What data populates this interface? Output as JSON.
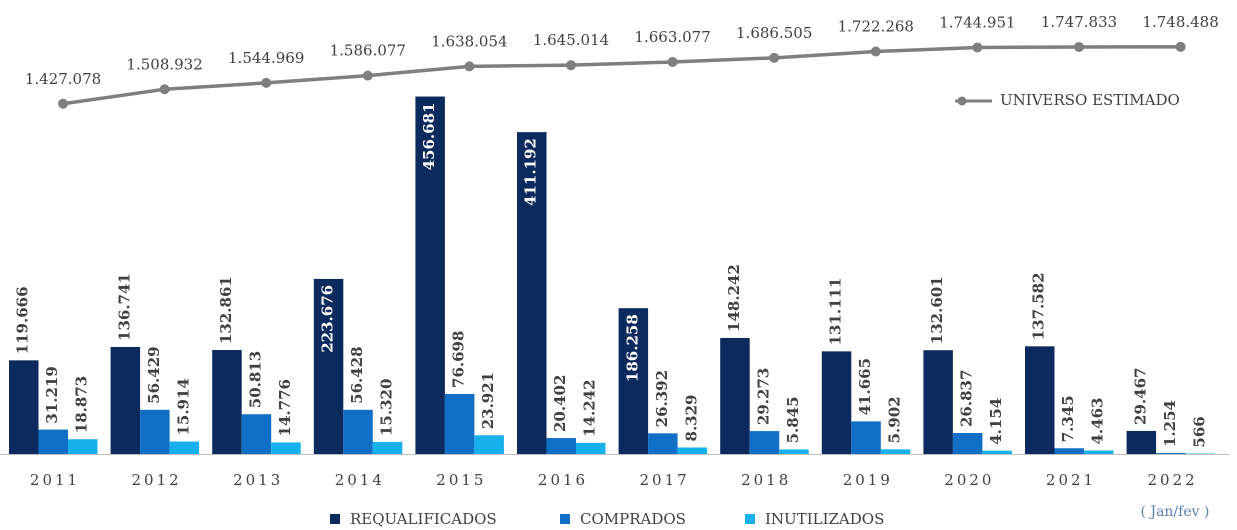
{
  "chart_data": {
    "type": "bar",
    "categories": [
      "2011",
      "2012",
      "2013",
      "2014",
      "2015",
      "2016",
      "2017",
      "2018",
      "2019",
      "2020",
      "2021",
      "2022"
    ],
    "series": [
      {
        "name": "REQUALIFICADOS",
        "color": "#0d2a5e",
        "values": [
          119666,
          136741,
          132861,
          223676,
          456681,
          411192,
          186258,
          148242,
          131111,
          132601,
          137582,
          29467
        ],
        "value_labels": [
          "119.666",
          "136.741",
          "132.861",
          "223.676",
          "456.681",
          "411.192",
          "186.258",
          "148.242",
          "131.111",
          "132.601",
          "137.582",
          "29.467"
        ]
      },
      {
        "name": "COMPRADOS",
        "color": "#1170c6",
        "values": [
          31219,
          56429,
          50813,
          56428,
          76698,
          20402,
          26392,
          29273,
          41665,
          26837,
          7345,
          1254
        ],
        "value_labels": [
          "31.219",
          "56.429",
          "50.813",
          "56.428",
          "76.698",
          "20.402",
          "26.392",
          "29.273",
          "41.665",
          "26.837",
          "7.345",
          "1.254"
        ]
      },
      {
        "name": "INUTILIZADOS",
        "color": "#16b0ec",
        "values": [
          18873,
          15914,
          14776,
          15320,
          23921,
          14242,
          8329,
          5845,
          5902,
          4154,
          4463,
          566
        ],
        "value_labels": [
          "18.873",
          "15.914",
          "14.776",
          "15.320",
          "23.921",
          "14.242",
          "8.329",
          "5.845",
          "5.902",
          "4.154",
          "4.463",
          "566"
        ]
      },
      {
        "name": "UNIVERSO ESTIMADO",
        "color": "#7f7f7f",
        "type": "line",
        "axis": "y2",
        "values": [
          1427078,
          1508932,
          1544969,
          1586077,
          1638054,
          1645014,
          1663077,
          1686505,
          1722268,
          1744951,
          1747833,
          1748488
        ],
        "value_labels": [
          "1.427.078",
          "1.508.932",
          "1.544.969",
          "1.586.077",
          "1.638.054",
          "1.645.014",
          "1.663.077",
          "1.686.505",
          "1.722.268",
          "1.744.951",
          "1.747.833",
          "1.748.488"
        ]
      }
    ],
    "ylim": [
      0,
      580000
    ],
    "y2lim": [
      1200000,
      1900000
    ],
    "annotation": "( Jan/fev )",
    "legend": "bottom"
  }
}
